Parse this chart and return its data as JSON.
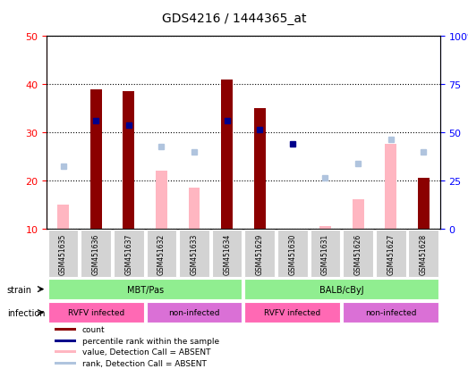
{
  "title": "GDS4216 / 1444365_at",
  "samples": [
    "GSM451635",
    "GSM451636",
    "GSM451637",
    "GSM451632",
    "GSM451633",
    "GSM451634",
    "GSM451629",
    "GSM451630",
    "GSM451631",
    "GSM451626",
    "GSM451627",
    "GSM451628"
  ],
  "red_bars": [
    null,
    39.0,
    38.5,
    null,
    null,
    41.0,
    35.0,
    null,
    null,
    null,
    null,
    20.5
  ],
  "pink_bars": [
    15.0,
    null,
    null,
    22.0,
    18.5,
    null,
    null,
    null,
    10.5,
    16.0,
    27.5,
    null
  ],
  "blue_squares": [
    null,
    32.5,
    31.5,
    null,
    null,
    32.5,
    30.5,
    27.5,
    null,
    null,
    null,
    null
  ],
  "light_blue_squares": [
    23.0,
    null,
    null,
    27.0,
    26.0,
    null,
    null,
    null,
    20.5,
    23.5,
    28.5,
    26.0
  ],
  "strain_groups": [
    {
      "label": "MBT/Pas",
      "start": 0,
      "end": 6,
      "color": "#90EE90"
    },
    {
      "label": "BALB/cByJ",
      "start": 6,
      "end": 12,
      "color": "#90EE90"
    }
  ],
  "infection_groups": [
    {
      "label": "RVFV infected",
      "start": 0,
      "end": 3,
      "color": "#FF69B4"
    },
    {
      "label": "non-infected",
      "start": 3,
      "end": 6,
      "color": "#DA70D6"
    },
    {
      "label": "RVFV infected",
      "start": 6,
      "end": 9,
      "color": "#FF69B4"
    },
    {
      "label": "non-infected",
      "start": 9,
      "end": 12,
      "color": "#DA70D6"
    }
  ],
  "ylim_left": [
    10,
    50
  ],
  "ylim_right": [
    0,
    100
  ],
  "yticks_left": [
    10,
    20,
    30,
    40,
    50
  ],
  "yticks_right": [
    0,
    25,
    50,
    75,
    100
  ],
  "bar_width": 0.35,
  "ybase": 10
}
